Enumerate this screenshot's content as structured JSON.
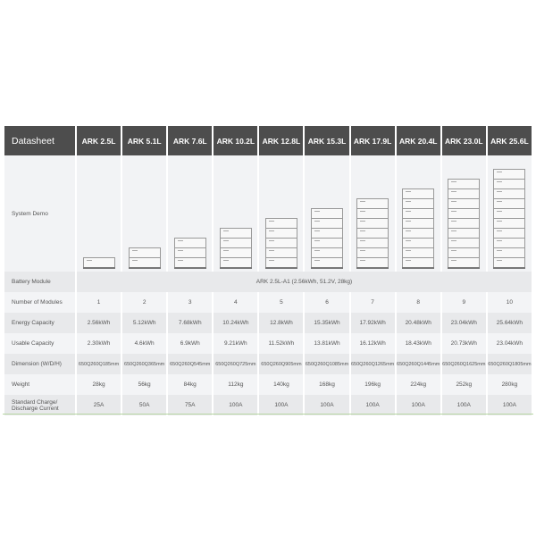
{
  "header": {
    "title": "Datasheet",
    "models": [
      "ARK 2.5L",
      "ARK 5.1L",
      "ARK 7.6L",
      "ARK 10.2L",
      "ARK 12.8L",
      "ARK 15.3L",
      "ARK 17.9L",
      "ARK 20.4L",
      "ARK 23.0L",
      "ARK 25.6L"
    ]
  },
  "system_demo": {
    "label": "System Demo",
    "modules": [
      1,
      2,
      3,
      4,
      5,
      6,
      7,
      8,
      9,
      10
    ]
  },
  "battery_module": {
    "label": "Battery Module",
    "value": "ARK 2.5L-A1 (2.56kWh, 51.2V, 28kg)"
  },
  "rows": [
    {
      "label": "Number of Modules",
      "values": [
        "1",
        "2",
        "3",
        "4",
        "5",
        "6",
        "7",
        "8",
        "9",
        "10"
      ]
    },
    {
      "label": "Energy Capacity",
      "values": [
        "2.56kWh",
        "5.12kWh",
        "7.68kWh",
        "10.24kWh",
        "12.8kWh",
        "15.35kWh",
        "17.92kWh",
        "20.48kWh",
        "23.04kWh",
        "25.64kWh"
      ]
    },
    {
      "label": "Usable Capacity",
      "values": [
        "2.30kWh",
        "4.6kWh",
        "6.9kWh",
        "9.21kWh",
        "11.52kWh",
        "13.81kWh",
        "16.12kWh",
        "18.43kWh",
        "20.73kWh",
        "23.04kWh"
      ]
    },
    {
      "label": "Dimension (W/D/H)",
      "values": [
        "650Q260Q185mm",
        "650Q260Q365mm",
        "650Q260Q545mm",
        "650Q260Q725mm",
        "650Q260Q905mm",
        "650Q260Q1085mm",
        "650Q260Q1265mm",
        "650Q260Q1445mm",
        "650Q260Q1625mm",
        "650Q260Q1805mm"
      ]
    },
    {
      "label": "Weight",
      "values": [
        "28kg",
        "56kg",
        "84kg",
        "112kg",
        "140kg",
        "168kg",
        "196kg",
        "224kg",
        "252kg",
        "280kg"
      ]
    },
    {
      "label": "Standard Charge/ Discharge Current",
      "values": [
        "25A",
        "50A",
        "75A",
        "100A",
        "100A",
        "100A",
        "100A",
        "100A",
        "100A",
        "100A"
      ]
    }
  ]
}
